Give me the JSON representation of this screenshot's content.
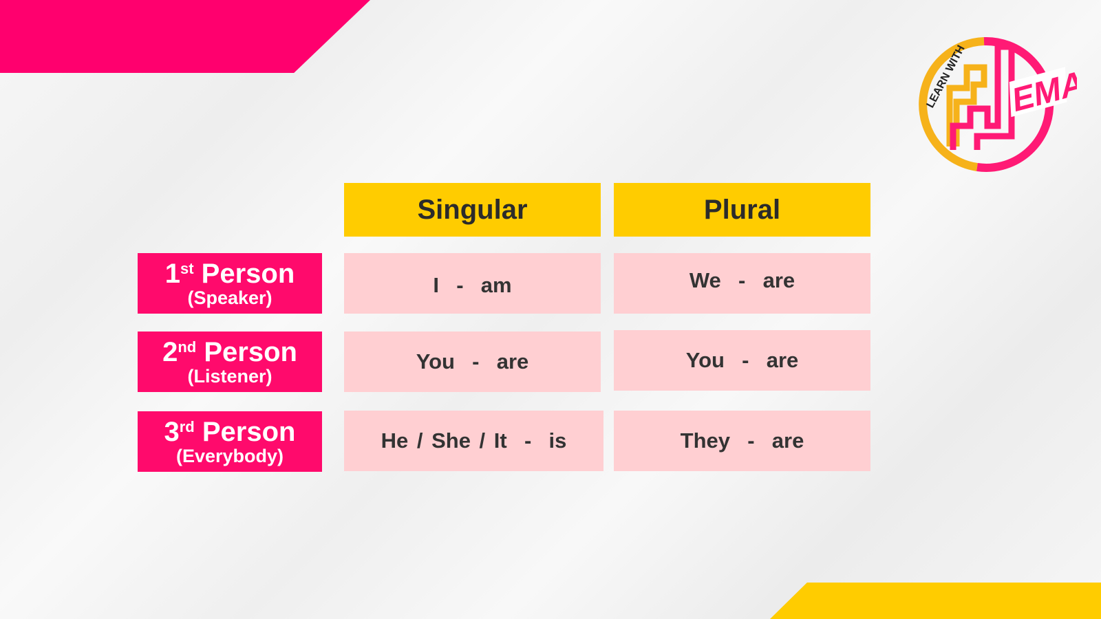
{
  "logo": {
    "text_top": "LEARN WITH",
    "text_side": "EMA",
    "colors": {
      "yellow": "#f6b21a",
      "pink": "#ff1a75"
    }
  },
  "table": {
    "headers": [
      "Singular",
      "Plural"
    ],
    "rows": [
      {
        "ordinal": "1",
        "suffix": "st",
        "label": "Person",
        "sub": "(Speaker)",
        "singular": "I  -  am",
        "plural": "We  -  are"
      },
      {
        "ordinal": "2",
        "suffix": "nd",
        "label": "Person",
        "sub": "(Listener)",
        "singular": "You  -  are",
        "plural": "You  -  are"
      },
      {
        "ordinal": "3",
        "suffix": "rd",
        "label": "Person",
        "sub": "(Everybody)",
        "singular": "He / She / It  -  is",
        "plural": "They  -  are"
      }
    ]
  },
  "colors": {
    "pink": "#ff0a6c",
    "yellow": "#ffcc00",
    "cell": "#ffcfd2"
  }
}
